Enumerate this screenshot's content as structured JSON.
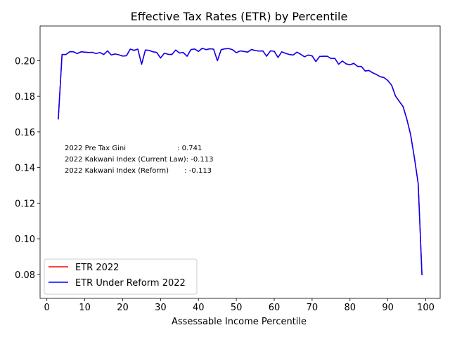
{
  "chart_data": {
    "type": "line",
    "title": "Effective Tax Rates (ETR) by Percentile",
    "xlabel": "Assessable Income Percentile",
    "ylabel": "",
    "xlim": [
      -1.8,
      103.8
    ],
    "ylim": [
      0.0665,
      0.2195
    ],
    "x_ticks": [
      0,
      10,
      20,
      30,
      40,
      50,
      60,
      70,
      80,
      90,
      100
    ],
    "y_ticks": [
      0.08,
      0.1,
      0.12,
      0.14,
      0.16,
      0.18,
      0.2
    ],
    "y_tick_labels": [
      "0.08",
      "0.10",
      "0.12",
      "0.14",
      "0.16",
      "0.18",
      "0.20"
    ],
    "grid": false,
    "legend_position": "lower-left",
    "x": [
      3,
      4,
      5,
      6,
      7,
      8,
      9,
      10,
      11,
      12,
      13,
      14,
      15,
      16,
      17,
      18,
      19,
      20,
      21,
      22,
      23,
      24,
      25,
      26,
      27,
      28,
      29,
      30,
      31,
      32,
      33,
      34,
      35,
      36,
      37,
      38,
      39,
      40,
      41,
      42,
      43,
      44,
      45,
      46,
      47,
      48,
      49,
      50,
      51,
      52,
      53,
      54,
      55,
      56,
      57,
      58,
      59,
      60,
      61,
      62,
      63,
      64,
      65,
      66,
      67,
      68,
      69,
      70,
      71,
      72,
      73,
      74,
      75,
      76,
      77,
      78,
      79,
      80,
      81,
      82,
      83,
      84,
      85,
      86,
      87,
      88,
      89,
      90,
      91,
      92,
      93,
      94,
      95,
      96,
      97,
      98,
      99
    ],
    "series": [
      {
        "name": "ETR 2022",
        "color": "#ff0000",
        "values": [
          0.167,
          0.2035,
          0.2035,
          0.205,
          0.205,
          0.204,
          0.205,
          0.2048,
          0.2046,
          0.2047,
          0.204,
          0.2046,
          0.2035,
          0.2055,
          0.2032,
          0.2038,
          0.2033,
          0.2026,
          0.2028,
          0.2065,
          0.2058,
          0.2065,
          0.198,
          0.206,
          0.2058,
          0.205,
          0.2046,
          0.2015,
          0.2042,
          0.2036,
          0.2035,
          0.206,
          0.2043,
          0.2046,
          0.2025,
          0.2062,
          0.2066,
          0.2052,
          0.207,
          0.2062,
          0.2067,
          0.2065,
          0.2,
          0.2062,
          0.2067,
          0.2068,
          0.2062,
          0.2045,
          0.2055,
          0.2052,
          0.2048,
          0.2063,
          0.2057,
          0.2054,
          0.2055,
          0.2025,
          0.2055,
          0.2053,
          0.2018,
          0.205,
          0.2041,
          0.2035,
          0.2032,
          0.2048,
          0.2036,
          0.2022,
          0.2032,
          0.2027,
          0.1995,
          0.2024,
          0.2025,
          0.2025,
          0.2012,
          0.2013,
          0.198,
          0.1998,
          0.1982,
          0.1977,
          0.1985,
          0.1968,
          0.1968,
          0.1942,
          0.1945,
          0.1932,
          0.1922,
          0.191,
          0.1905,
          0.1888,
          0.1862,
          0.1802,
          0.1772,
          0.1743,
          0.1672,
          0.1585,
          0.1455,
          0.131,
          0.0795
        ]
      },
      {
        "name": "ETR Under Reform 2022",
        "color": "#0000ff",
        "values": [
          0.167,
          0.2035,
          0.2035,
          0.205,
          0.205,
          0.204,
          0.205,
          0.2048,
          0.2046,
          0.2047,
          0.204,
          0.2046,
          0.2035,
          0.2055,
          0.2032,
          0.2038,
          0.2033,
          0.2026,
          0.2028,
          0.2065,
          0.2058,
          0.2065,
          0.198,
          0.206,
          0.2058,
          0.205,
          0.2046,
          0.2015,
          0.2042,
          0.2036,
          0.2035,
          0.206,
          0.2043,
          0.2046,
          0.2025,
          0.2062,
          0.2066,
          0.2052,
          0.207,
          0.2062,
          0.2067,
          0.2065,
          0.2,
          0.2062,
          0.2067,
          0.2068,
          0.2062,
          0.2045,
          0.2055,
          0.2052,
          0.2048,
          0.2063,
          0.2057,
          0.2054,
          0.2055,
          0.2025,
          0.2055,
          0.2053,
          0.2018,
          0.205,
          0.2041,
          0.2035,
          0.2032,
          0.2048,
          0.2036,
          0.2022,
          0.2032,
          0.2027,
          0.1995,
          0.2024,
          0.2025,
          0.2025,
          0.2012,
          0.2013,
          0.198,
          0.1998,
          0.1982,
          0.1977,
          0.1985,
          0.1968,
          0.1968,
          0.1942,
          0.1945,
          0.1932,
          0.1922,
          0.191,
          0.1905,
          0.1888,
          0.1862,
          0.1802,
          0.1772,
          0.1743,
          0.1672,
          0.1585,
          0.1455,
          0.131,
          0.0795
        ]
      }
    ],
    "annotations": [
      "2022 Pre Tax Gini                       : 0.741",
      "2022 Kakwani Index (Current Law): -0.113",
      "2022 Kakwani Index (Reform)       : -0.113"
    ]
  }
}
